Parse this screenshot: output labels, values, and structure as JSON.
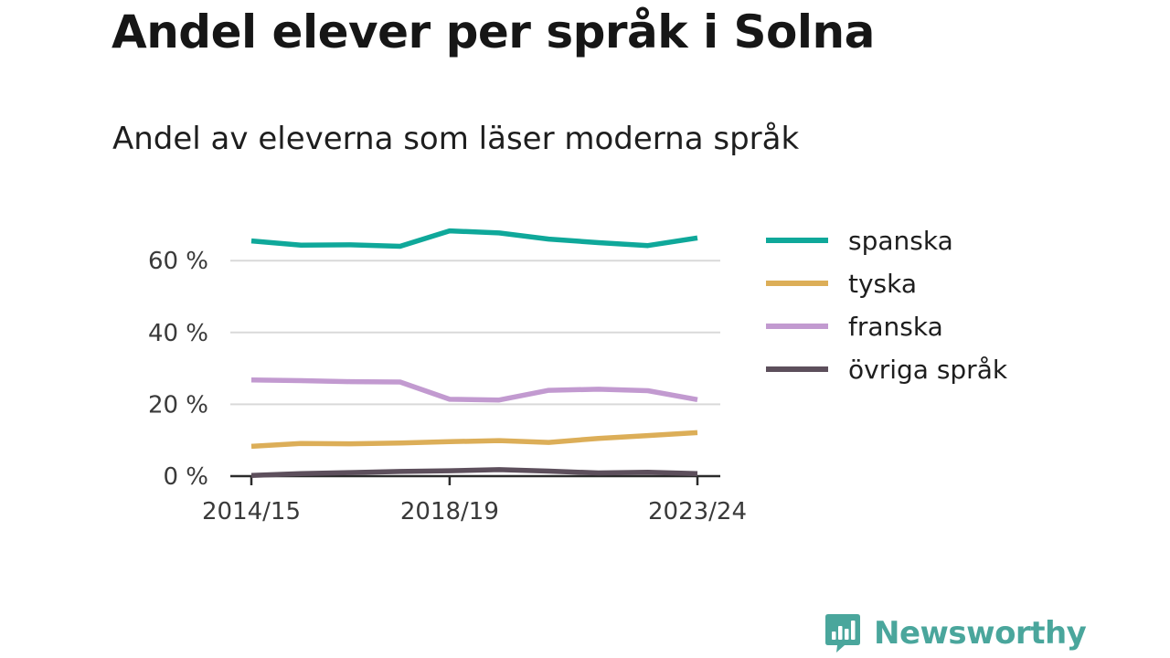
{
  "header": {
    "title": "Andel elever per språk i Solna",
    "subtitle": "Andel av eleverna som läser moderna språk"
  },
  "brand": {
    "name": "Newsworthy",
    "color": "#4aa69c"
  },
  "chart_data": {
    "type": "line",
    "title": "Andel elever per språk i Solna",
    "subtitle": "Andel av eleverna som läser moderna språk",
    "xlabel": "",
    "ylabel": "",
    "x": [
      "2014/15",
      "2015/16",
      "2016/17",
      "2017/18",
      "2018/19",
      "2019/20",
      "2020/21",
      "2021/22",
      "2022/23",
      "2023/24"
    ],
    "x_tick_labels": [
      "2014/15",
      "2018/19",
      "2023/24"
    ],
    "y_ticks": [
      {
        "value": 0,
        "label": "0 %"
      },
      {
        "value": 20,
        "label": "20 %"
      },
      {
        "value": 40,
        "label": "40 %"
      },
      {
        "value": 60,
        "label": "60 %"
      }
    ],
    "ylim": [
      0,
      70
    ],
    "grid": true,
    "legend_position": "right",
    "series": [
      {
        "name": "spanska",
        "color": "#0fa89a",
        "values": [
          65.5,
          64.3,
          64.4,
          64.0,
          68.3,
          67.7,
          66.0,
          65.0,
          64.2,
          66.3
        ]
      },
      {
        "name": "tyska",
        "color": "#dcae58",
        "values": [
          8.3,
          9.1,
          9.0,
          9.2,
          9.6,
          9.9,
          9.4,
          10.5,
          11.3,
          12.1
        ]
      },
      {
        "name": "franska",
        "color": "#c29ad0",
        "values": [
          26.8,
          26.6,
          26.3,
          26.2,
          21.4,
          21.2,
          23.9,
          24.2,
          23.8,
          21.3
        ]
      },
      {
        "name": "övriga språk",
        "color": "#5d4f5c",
        "values": [
          0.2,
          0.7,
          1.0,
          1.3,
          1.5,
          1.8,
          1.4,
          0.9,
          1.1,
          0.7
        ]
      }
    ]
  }
}
